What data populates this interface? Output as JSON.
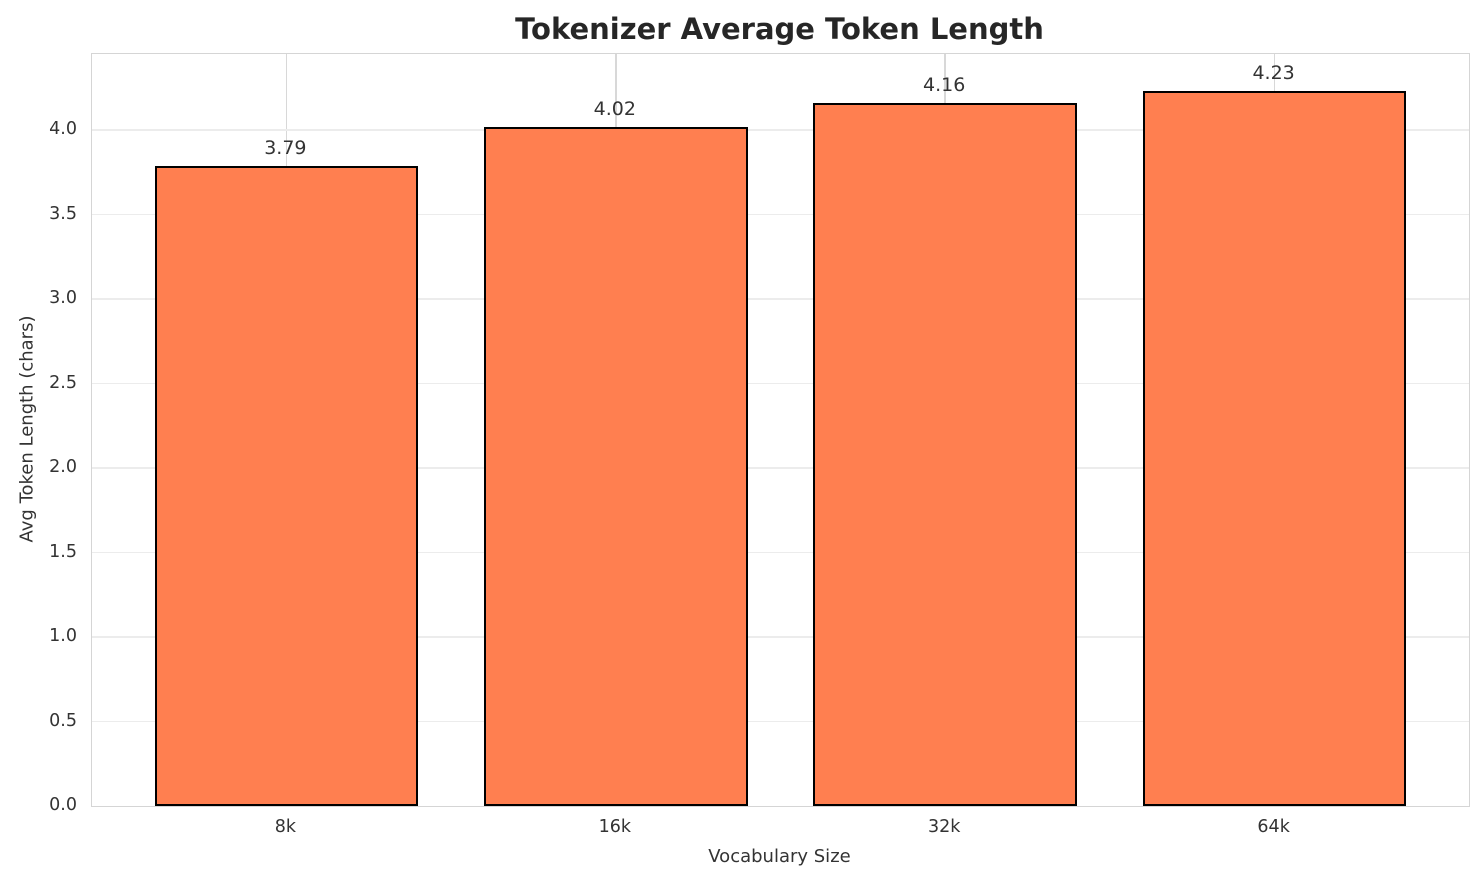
{
  "chart_data": {
    "type": "bar",
    "title": "Tokenizer Average Token Length",
    "xlabel": "Vocabulary Size",
    "ylabel": "Avg Token Length (chars)",
    "categories": [
      "8k",
      "16k",
      "32k",
      "64k"
    ],
    "values": [
      3.79,
      4.02,
      4.16,
      4.23
    ],
    "bar_labels": [
      "3.79",
      "4.02",
      "4.16",
      "4.23"
    ],
    "ytick_values": [
      0.0,
      0.5,
      1.0,
      1.5,
      2.0,
      2.5,
      3.0,
      3.5,
      4.0
    ],
    "ytick_labels": [
      "0.0",
      "0.5",
      "1.0",
      "1.5",
      "2.0",
      "2.5",
      "3.0",
      "3.5",
      "4.0"
    ],
    "ylim": [
      0,
      4.45
    ],
    "grid": "both",
    "legend": "none",
    "colors": {
      "bar_fill": "#FF7F50",
      "bar_edge": "#000000",
      "horizontal_grid": "#ececec",
      "vertical_grid": "#d8d8d8",
      "spine": "#d5d5d5",
      "title_text": "#262626",
      "label_text": "#333333"
    }
  }
}
